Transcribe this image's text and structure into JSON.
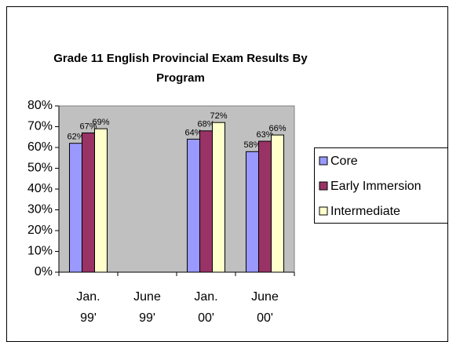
{
  "chart_data": {
    "type": "bar",
    "title": "Grade 11 English Provincial Exam Results By Program",
    "categories": [
      "Jan. 99'",
      "June 99'",
      "Jan. 00'",
      "June 00'"
    ],
    "series": [
      {
        "name": "Core",
        "color": "#9999ff",
        "values": [
          62,
          null,
          64,
          58
        ],
        "value_labels": [
          "62%",
          null,
          "64%",
          "58%"
        ]
      },
      {
        "name": "Early Immersion",
        "color": "#993366",
        "values": [
          67,
          null,
          68,
          63
        ],
        "value_labels": [
          "67%",
          null,
          "68%",
          "63%"
        ]
      },
      {
        "name": "Intermediate",
        "color": "#ffffcc",
        "values": [
          69,
          null,
          72,
          66
        ],
        "value_labels": [
          "69%",
          null,
          "72%",
          "66%"
        ]
      }
    ],
    "ylim": [
      0,
      80
    ],
    "yticks": [
      {
        "value": 0,
        "label": "0%"
      },
      {
        "value": 10,
        "label": "10%"
      },
      {
        "value": 20,
        "label": "20%"
      },
      {
        "value": 30,
        "label": "30%"
      },
      {
        "value": 40,
        "label": "40%"
      },
      {
        "value": 50,
        "label": "50%"
      },
      {
        "value": 60,
        "label": "60%"
      },
      {
        "value": 70,
        "label": "70%"
      },
      {
        "value": 80,
        "label": "80%"
      }
    ],
    "legend": "right"
  }
}
